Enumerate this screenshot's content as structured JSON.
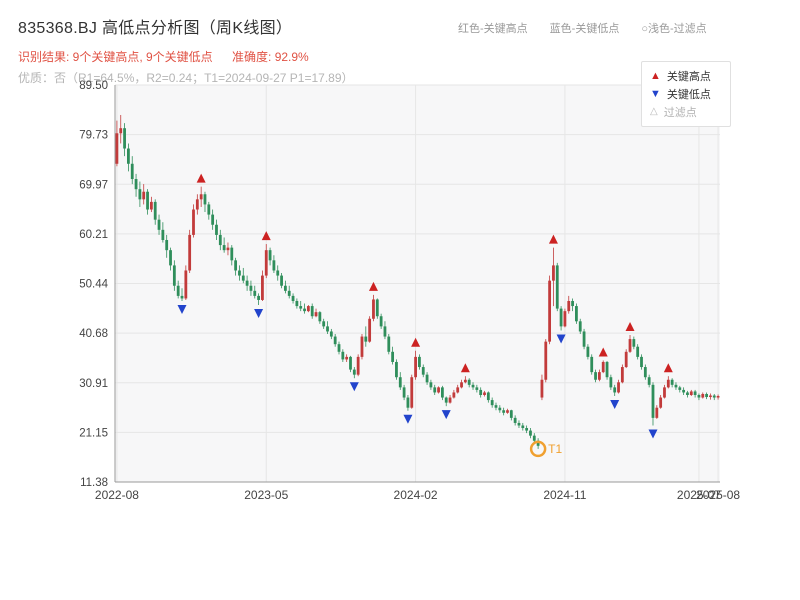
{
  "header": {
    "title": "835368.BJ 高低点分析图（周K线图）",
    "legend_high": "红色-关键高点",
    "legend_low": "蓝色-关键低点",
    "legend_filter": "○浅色-过滤点",
    "result_text": "识别结果: 9个关键高点, 9个关键低点",
    "accuracy_text": "准确度: 92.9%",
    "quality_line": "优质：否（R1=64.5%，R2=0.24；T1=2024-09-27 P1=17.89）"
  },
  "chart_legend": {
    "high_label": "关键高点",
    "low_label": "关键低点",
    "filter_label": "过滤点",
    "high_icon": "▲",
    "low_icon": "▼",
    "filter_icon": "△"
  },
  "colors": {
    "up": "#c23b3b",
    "down": "#2f8e5b",
    "key_high": "#cc2222",
    "key_low": "#2244cc",
    "t1": "#f0a030",
    "grid": "#e6e6e6",
    "plot_bg": "#f7f7f8",
    "axis": "#999999",
    "tick_label": "#444444"
  },
  "chart_data": {
    "type": "candlestick",
    "symbol": "835368.BJ",
    "period": "weekly",
    "title": "835368.BJ 高低点分析图（周K线图）",
    "ylim": [
      11.38,
      89.5
    ],
    "y_ticks": [
      89.5,
      79.73,
      69.97,
      60.21,
      50.44,
      40.68,
      30.91,
      21.15,
      11.38
    ],
    "x_ticks": [
      {
        "label": "2022-08",
        "week": 0
      },
      {
        "label": "2023-05",
        "week": 39
      },
      {
        "label": "2024-02",
        "week": 78
      },
      {
        "label": "2024-11",
        "week": 117
      },
      {
        "label": "2025-07",
        "week": 152
      },
      {
        "label": "2025-08",
        "week": 157
      }
    ],
    "candles": [
      [
        74,
        82.5,
        73.5,
        80
      ],
      [
        80,
        83.6,
        78,
        81
      ],
      [
        81,
        82,
        75.5,
        77
      ],
      [
        77,
        78,
        72.5,
        74
      ],
      [
        74,
        75.5,
        70,
        71
      ],
      [
        71,
        72,
        67.5,
        69
      ],
      [
        69,
        70.5,
        65.5,
        67
      ],
      [
        67,
        70,
        66,
        68.5
      ],
      [
        68.5,
        69,
        64,
        65
      ],
      [
        65,
        67.5,
        64.5,
        66.5
      ],
      [
        66.5,
        67,
        62,
        63
      ],
      [
        63,
        64,
        60,
        61
      ],
      [
        61,
        62.5,
        58.5,
        59
      ],
      [
        59,
        60,
        55.5,
        57
      ],
      [
        57,
        57.5,
        53,
        54
      ],
      [
        54,
        55,
        49,
        50
      ],
      [
        50,
        51,
        47.5,
        48
      ],
      [
        48,
        49.5,
        47.0,
        47.5
      ],
      [
        47.5,
        54,
        47.2,
        53
      ],
      [
        53,
        61,
        52.5,
        60
      ],
      [
        60,
        66,
        59.5,
        65
      ],
      [
        65,
        68,
        64,
        67
      ],
      [
        67,
        69.5,
        65.5,
        68
      ],
      [
        68,
        68.5,
        64.5,
        66
      ],
      [
        66,
        66.5,
        63,
        64
      ],
      [
        64,
        65,
        61,
        62
      ],
      [
        62,
        63,
        59,
        60
      ],
      [
        60,
        61,
        57,
        58
      ],
      [
        58,
        59.5,
        56.5,
        57
      ],
      [
        57,
        58.5,
        56,
        57.5
      ],
      [
        57.5,
        58,
        54,
        55
      ],
      [
        55,
        55.5,
        52,
        53
      ],
      [
        53,
        54,
        51,
        52
      ],
      [
        52,
        53.5,
        50.5,
        51
      ],
      [
        51,
        52,
        49,
        50
      ],
      [
        50,
        51,
        48,
        49
      ],
      [
        49,
        50,
        47.5,
        48
      ],
      [
        48,
        48.5,
        46.2,
        47.2
      ],
      [
        47.2,
        53,
        47,
        52
      ],
      [
        52,
        58.2,
        51.5,
        57
      ],
      [
        57,
        57.5,
        54,
        55
      ],
      [
        55,
        56,
        52.5,
        53
      ],
      [
        53,
        54,
        51,
        52
      ],
      [
        52,
        52.5,
        49.5,
        50
      ],
      [
        50,
        51,
        48.5,
        49
      ],
      [
        49,
        50,
        47.5,
        48
      ],
      [
        48,
        48.5,
        46.5,
        47
      ],
      [
        47,
        47.5,
        45.5,
        46
      ],
      [
        46,
        47,
        45,
        45.5
      ],
      [
        45.5,
        46.5,
        44.5,
        45
      ],
      [
        45,
        46.2,
        44.8,
        46
      ],
      [
        46,
        46.5,
        43.5,
        44
      ],
      [
        44,
        45.5,
        43.8,
        44.8
      ],
      [
        44.8,
        45,
        42.5,
        43
      ],
      [
        43,
        43.5,
        41.5,
        42
      ],
      [
        42,
        43,
        40.5,
        41
      ],
      [
        41,
        41.5,
        39.5,
        40
      ],
      [
        40,
        40.5,
        38,
        38.5
      ],
      [
        38.5,
        39,
        36.5,
        37
      ],
      [
        37,
        37.5,
        35,
        35.5
      ],
      [
        35.5,
        36.5,
        35,
        36
      ],
      [
        36,
        36.2,
        33,
        33.5
      ],
      [
        33.5,
        34,
        31.8,
        32.5
      ],
      [
        32.5,
        36.5,
        32.2,
        36
      ],
      [
        36,
        40.5,
        35.5,
        40
      ],
      [
        40,
        42,
        38,
        39
      ],
      [
        39,
        44,
        38.8,
        43.5
      ],
      [
        43.5,
        48.2,
        43,
        47.3
      ],
      [
        47.3,
        47.5,
        43.5,
        44
      ],
      [
        44,
        44.5,
        41.5,
        42
      ],
      [
        42,
        43,
        39.5,
        40
      ],
      [
        40,
        40.5,
        36.5,
        37
      ],
      [
        37,
        38,
        34.5,
        35
      ],
      [
        35,
        35.5,
        31.5,
        32
      ],
      [
        32,
        33,
        29.5,
        30
      ],
      [
        30,
        30.5,
        27.5,
        28
      ],
      [
        28,
        28.5,
        25.4,
        26
      ],
      [
        26,
        32.5,
        25.8,
        32
      ],
      [
        32,
        37.2,
        31.5,
        36
      ],
      [
        36,
        36.5,
        33.5,
        34
      ],
      [
        34,
        34.5,
        32,
        32.5
      ],
      [
        32.5,
        33,
        30.5,
        31
      ],
      [
        31,
        31.5,
        29.5,
        30
      ],
      [
        30,
        30.5,
        28.5,
        29
      ],
      [
        29,
        30.2,
        28.8,
        30
      ],
      [
        30,
        30.3,
        27.5,
        28
      ],
      [
        28,
        28.2,
        26.3,
        27
      ],
      [
        27,
        28.5,
        26.8,
        28
      ],
      [
        28,
        29.5,
        27.8,
        29
      ],
      [
        29,
        30.5,
        28.8,
        30
      ],
      [
        30,
        31.5,
        29.8,
        31
      ],
      [
        31,
        32.2,
        30.8,
        31.5
      ],
      [
        31.5,
        31.8,
        30,
        30.5
      ],
      [
        30.5,
        31,
        29.5,
        30
      ],
      [
        30,
        30.5,
        29,
        29.5
      ],
      [
        29.5,
        30,
        28,
        28.5
      ],
      [
        28.5,
        29.3,
        28.2,
        29
      ],
      [
        29,
        29.2,
        27,
        27.5
      ],
      [
        27.5,
        28,
        26,
        26.5
      ],
      [
        26.5,
        27,
        25.5,
        26
      ],
      [
        26,
        26.5,
        25,
        25.5
      ],
      [
        25.5,
        26,
        24.5,
        25
      ],
      [
        25,
        25.8,
        24.8,
        25.5
      ],
      [
        25.5,
        25.6,
        23.5,
        24
      ],
      [
        24,
        24.5,
        22.5,
        23
      ],
      [
        23,
        23.5,
        22,
        22.5
      ],
      [
        22.5,
        23,
        21.5,
        22
      ],
      [
        22,
        22.5,
        21,
        21.5
      ],
      [
        21.5,
        22,
        20,
        20.5
      ],
      [
        20.5,
        21,
        19,
        19.5
      ],
      [
        19.5,
        20,
        17.89,
        18.5
      ],
      [
        28,
        32.5,
        27.5,
        31.5
      ],
      [
        31.5,
        39.5,
        31,
        39
      ],
      [
        39,
        52,
        38.5,
        51
      ],
      [
        51,
        57.5,
        46,
        54
      ],
      [
        54,
        54.5,
        45,
        45.5
      ],
      [
        45.5,
        46,
        41.2,
        42
      ],
      [
        42,
        45.5,
        41.8,
        45
      ],
      [
        45,
        48,
        44.5,
        47
      ],
      [
        47,
        47.5,
        45,
        46
      ],
      [
        46,
        46.5,
        42.5,
        43
      ],
      [
        43,
        43.5,
        40.5,
        41
      ],
      [
        41,
        41.5,
        37.5,
        38
      ],
      [
        38,
        38.5,
        35.5,
        36
      ],
      [
        36,
        36.5,
        32.5,
        33
      ],
      [
        33,
        33.5,
        31,
        31.5
      ],
      [
        31.5,
        33.5,
        31.2,
        33
      ],
      [
        33,
        35.3,
        32.8,
        35
      ],
      [
        35,
        35.2,
        31.5,
        32
      ],
      [
        32,
        32.5,
        29.5,
        30
      ],
      [
        30,
        30.5,
        28.3,
        29
      ],
      [
        29,
        31.5,
        28.8,
        31
      ],
      [
        31,
        34.5,
        30.8,
        34
      ],
      [
        34,
        37.5,
        33.8,
        37
      ],
      [
        37,
        40.3,
        36.8,
        39.5
      ],
      [
        39.5,
        40,
        37.5,
        38
      ],
      [
        38,
        38.5,
        35.5,
        36
      ],
      [
        36,
        36.5,
        33.5,
        34
      ],
      [
        34,
        34.5,
        31.5,
        32
      ],
      [
        32,
        32.5,
        30,
        30.5
      ],
      [
        30.5,
        31,
        22.5,
        24
      ],
      [
        24,
        26.5,
        23.8,
        26
      ],
      [
        26,
        28.5,
        25.8,
        28
      ],
      [
        28,
        30.5,
        27.8,
        30
      ],
      [
        30,
        32.2,
        29.8,
        31.5
      ],
      [
        31.5,
        31.8,
        30,
        30.5
      ],
      [
        30.5,
        31,
        29.5,
        30
      ],
      [
        30,
        30.3,
        29,
        29.5
      ],
      [
        29.5,
        30,
        28.5,
        29
      ],
      [
        29,
        29.3,
        28,
        28.5
      ],
      [
        28.5,
        29.5,
        28.3,
        29.2
      ],
      [
        29.2,
        29.5,
        28,
        28.5
      ],
      [
        28.5,
        28.8,
        27.5,
        28
      ],
      [
        28,
        29,
        27.8,
        28.7
      ],
      [
        28.7,
        29,
        27.7,
        28.1
      ],
      [
        28.1,
        28.8,
        27.6,
        28.4
      ],
      [
        28.4,
        28.7,
        27.5,
        28
      ],
      [
        28,
        28.6,
        27.6,
        28.3
      ]
    ],
    "key_highs": [
      {
        "week": 22,
        "price": 69.5
      },
      {
        "week": 39,
        "price": 58.2
      },
      {
        "week": 67,
        "price": 48.2
      },
      {
        "week": 78,
        "price": 37.2
      },
      {
        "week": 91,
        "price": 32.2
      },
      {
        "week": 114,
        "price": 57.5
      },
      {
        "week": 127,
        "price": 35.3
      },
      {
        "week": 134,
        "price": 40.3
      },
      {
        "week": 144,
        "price": 32.2
      }
    ],
    "key_lows": [
      {
        "week": 17,
        "price": 47.0
      },
      {
        "week": 37,
        "price": 46.2
      },
      {
        "week": 62,
        "price": 31.8
      },
      {
        "week": 76,
        "price": 25.4
      },
      {
        "week": 86,
        "price": 26.3
      },
      {
        "week": 110,
        "price": 17.89,
        "t1": true
      },
      {
        "week": 116,
        "price": 41.2
      },
      {
        "week": 130,
        "price": 28.3
      },
      {
        "week": 140,
        "price": 22.5
      }
    ],
    "t1_point": {
      "week": 110,
      "price": 17.89,
      "label": "T1",
      "date": "2024-09-27"
    }
  }
}
